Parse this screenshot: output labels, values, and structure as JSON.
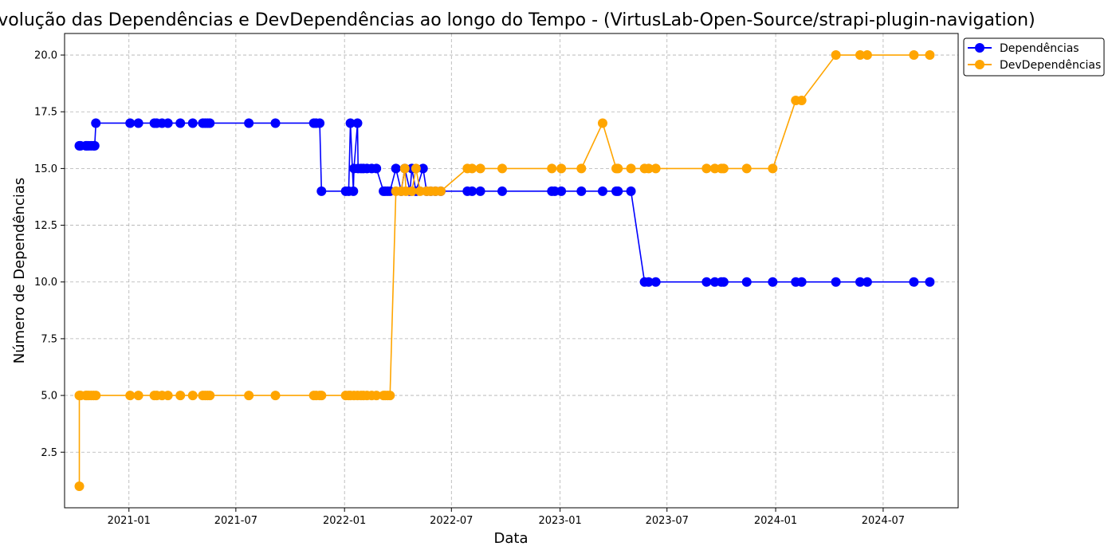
{
  "chart_data": {
    "type": "line",
    "title": "Evolução das Dependências e DevDependências ao longo do Tempo - (VirtusLab-Open-Source/strapi-plugin-navigation)",
    "xlabel": "Data",
    "ylabel": "Número de Dependências",
    "x_ticks": [
      "2021-01",
      "2021-07",
      "2022-01",
      "2022-07",
      "2023-01",
      "2023-07",
      "2024-01",
      "2024-07"
    ],
    "y_ticks": [
      "2.5",
      "5.0",
      "7.5",
      "10.0",
      "12.5",
      "15.0",
      "17.5",
      "20.0"
    ],
    "xlim": [
      "2020-09-14",
      "2024-11-05"
    ],
    "ylim": [
      0.05,
      20.95
    ],
    "grid": true,
    "legend": "top-right outside plot",
    "series": [
      {
        "name": "Dependências",
        "color": "#0000ff",
        "points": [
          [
            "2020-10-09",
            16
          ],
          [
            "2020-10-11",
            16
          ],
          [
            "2020-10-20",
            16
          ],
          [
            "2020-10-22",
            16
          ],
          [
            "2020-10-25",
            16
          ],
          [
            "2020-10-29",
            16
          ],
          [
            "2020-11-02",
            16
          ],
          [
            "2020-11-04",
            16
          ],
          [
            "2020-11-06",
            17
          ],
          [
            "2021-01-03",
            17
          ],
          [
            "2021-01-17",
            17
          ],
          [
            "2021-02-13",
            17
          ],
          [
            "2021-02-17",
            17
          ],
          [
            "2021-02-26",
            17
          ],
          [
            "2021-03-08",
            17
          ],
          [
            "2021-03-29",
            17
          ],
          [
            "2021-04-19",
            17
          ],
          [
            "2021-05-06",
            17
          ],
          [
            "2021-05-10",
            17
          ],
          [
            "2021-05-14",
            17
          ],
          [
            "2021-05-18",
            17
          ],
          [
            "2021-07-23",
            17
          ],
          [
            "2021-09-06",
            17
          ],
          [
            "2021-11-10",
            17
          ],
          [
            "2021-11-14",
            17
          ],
          [
            "2021-11-20",
            17
          ],
          [
            "2021-11-23",
            14
          ],
          [
            "2022-01-03",
            14
          ],
          [
            "2022-01-08",
            14
          ],
          [
            "2022-01-11",
            17
          ],
          [
            "2022-01-16",
            14
          ],
          [
            "2022-01-17",
            15
          ],
          [
            "2022-01-23",
            17
          ],
          [
            "2022-01-24",
            15
          ],
          [
            "2022-01-29",
            15
          ],
          [
            "2022-02-02",
            15
          ],
          [
            "2022-02-08",
            15
          ],
          [
            "2022-02-16",
            15
          ],
          [
            "2022-02-24",
            15
          ],
          [
            "2022-03-08",
            14
          ],
          [
            "2022-03-11",
            14
          ],
          [
            "2022-03-15",
            14
          ],
          [
            "2022-03-19",
            14
          ],
          [
            "2022-03-29",
            15
          ],
          [
            "2022-04-07",
            14
          ],
          [
            "2022-04-13",
            15
          ],
          [
            "2022-04-22",
            14
          ],
          [
            "2022-04-25",
            15
          ],
          [
            "2022-05-02",
            14
          ],
          [
            "2022-05-14",
            15
          ],
          [
            "2022-05-20",
            14
          ],
          [
            "2022-05-27",
            14
          ],
          [
            "2022-06-04",
            14
          ],
          [
            "2022-06-13",
            14
          ],
          [
            "2022-07-28",
            14
          ],
          [
            "2022-08-05",
            14
          ],
          [
            "2022-08-19",
            14
          ],
          [
            "2022-09-25",
            14
          ],
          [
            "2022-12-18",
            14
          ],
          [
            "2022-12-23",
            14
          ],
          [
            "2023-01-03",
            14
          ],
          [
            "2023-02-06",
            14
          ],
          [
            "2023-03-14",
            14
          ],
          [
            "2023-04-06",
            14
          ],
          [
            "2023-04-09",
            14
          ],
          [
            "2023-05-01",
            14
          ],
          [
            "2023-05-24",
            10
          ],
          [
            "2023-05-31",
            10
          ],
          [
            "2023-06-12",
            10
          ],
          [
            "2023-09-06",
            10
          ],
          [
            "2023-09-20",
            10
          ],
          [
            "2023-10-01",
            10
          ],
          [
            "2023-10-05",
            10
          ],
          [
            "2023-11-13",
            10
          ],
          [
            "2023-12-27",
            10
          ],
          [
            "2024-02-04",
            10
          ],
          [
            "2024-02-14",
            10
          ],
          [
            "2024-04-12",
            10
          ],
          [
            "2024-05-23",
            10
          ],
          [
            "2024-06-04",
            10
          ],
          [
            "2024-08-22",
            10
          ],
          [
            "2024-09-18",
            10
          ]
        ]
      },
      {
        "name": "DevDependências",
        "color": "#ffa500",
        "points": [
          [
            "2020-10-09",
            1
          ],
          [
            "2020-10-09",
            5
          ],
          [
            "2020-10-11",
            5
          ],
          [
            "2020-10-20",
            5
          ],
          [
            "2020-10-22",
            5
          ],
          [
            "2020-10-25",
            5
          ],
          [
            "2020-10-29",
            5
          ],
          [
            "2020-11-02",
            5
          ],
          [
            "2020-11-06",
            5
          ],
          [
            "2021-01-03",
            5
          ],
          [
            "2021-01-17",
            5
          ],
          [
            "2021-02-13",
            5
          ],
          [
            "2021-02-17",
            5
          ],
          [
            "2021-02-26",
            5
          ],
          [
            "2021-03-08",
            5
          ],
          [
            "2021-03-29",
            5
          ],
          [
            "2021-04-19",
            5
          ],
          [
            "2021-05-06",
            5
          ],
          [
            "2021-05-10",
            5
          ],
          [
            "2021-05-14",
            5
          ],
          [
            "2021-05-18",
            5
          ],
          [
            "2021-07-23",
            5
          ],
          [
            "2021-09-06",
            5
          ],
          [
            "2021-11-10",
            5
          ],
          [
            "2021-11-14",
            5
          ],
          [
            "2021-11-20",
            5
          ],
          [
            "2021-11-23",
            5
          ],
          [
            "2022-01-03",
            5
          ],
          [
            "2022-01-08",
            5
          ],
          [
            "2022-01-11",
            5
          ],
          [
            "2022-01-17",
            5
          ],
          [
            "2022-01-23",
            5
          ],
          [
            "2022-01-29",
            5
          ],
          [
            "2022-02-02",
            5
          ],
          [
            "2022-02-08",
            5
          ],
          [
            "2022-02-16",
            5
          ],
          [
            "2022-02-24",
            5
          ],
          [
            "2022-03-08",
            5
          ],
          [
            "2022-03-11",
            5
          ],
          [
            "2022-03-15",
            5
          ],
          [
            "2022-03-19",
            5
          ],
          [
            "2022-03-29",
            14
          ],
          [
            "2022-04-07",
            14
          ],
          [
            "2022-04-13",
            15
          ],
          [
            "2022-04-15",
            14
          ],
          [
            "2022-04-25",
            14
          ],
          [
            "2022-05-02",
            15
          ],
          [
            "2022-05-09",
            14
          ],
          [
            "2022-05-20",
            14
          ],
          [
            "2022-05-27",
            14
          ],
          [
            "2022-06-04",
            14
          ],
          [
            "2022-06-13",
            14
          ],
          [
            "2022-07-28",
            15
          ],
          [
            "2022-08-05",
            15
          ],
          [
            "2022-08-19",
            15
          ],
          [
            "2022-09-25",
            15
          ],
          [
            "2022-12-18",
            15
          ],
          [
            "2023-01-03",
            15
          ],
          [
            "2023-02-06",
            15
          ],
          [
            "2023-03-14",
            17
          ],
          [
            "2023-04-06",
            15
          ],
          [
            "2023-04-09",
            15
          ],
          [
            "2023-05-01",
            15
          ],
          [
            "2023-05-24",
            15
          ],
          [
            "2023-05-31",
            15
          ],
          [
            "2023-06-12",
            15
          ],
          [
            "2023-09-06",
            15
          ],
          [
            "2023-09-20",
            15
          ],
          [
            "2023-10-01",
            15
          ],
          [
            "2023-10-05",
            15
          ],
          [
            "2023-11-13",
            15
          ],
          [
            "2023-12-27",
            15
          ],
          [
            "2024-02-04",
            18
          ],
          [
            "2024-02-14",
            18
          ],
          [
            "2024-04-12",
            20
          ],
          [
            "2024-05-23",
            20
          ],
          [
            "2024-06-04",
            20
          ],
          [
            "2024-08-22",
            20
          ],
          [
            "2024-09-18",
            20
          ]
        ]
      }
    ]
  }
}
